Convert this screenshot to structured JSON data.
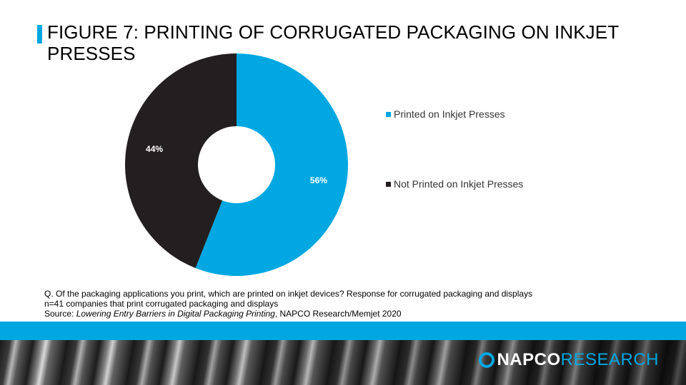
{
  "title": "FIGURE 7: PRINTING OF CORRUGATED PACKAGING ON INKJET PRESSES",
  "notes": {
    "question": "Q. Of the packaging applications you print, which are printed on inkjet devices? Response for corrugated packaging and displays",
    "sample": "n=41 companies that print corrugated packaging and displays",
    "source_prefix": "Source: ",
    "source_title": "Lowering Entry Barriers in Digital Packaging Printing",
    "source_suffix": ", NAPCO Research/Memjet 2020"
  },
  "logo": {
    "part1": "NAPCO",
    "part2": "RESEARCH"
  },
  "colors": {
    "accent": "#00a7e1",
    "dark": "#231f20"
  },
  "chart_data": {
    "type": "pie",
    "donut": true,
    "legend_position": "right",
    "slices": [
      {
        "name": "Printed on Inkjet Presses",
        "value": 56,
        "label": "56%",
        "color": "#00a7e1"
      },
      {
        "name": "Not Printed on Inkjet Presses",
        "value": 44,
        "label": "44%",
        "color": "#231f20"
      }
    ]
  }
}
